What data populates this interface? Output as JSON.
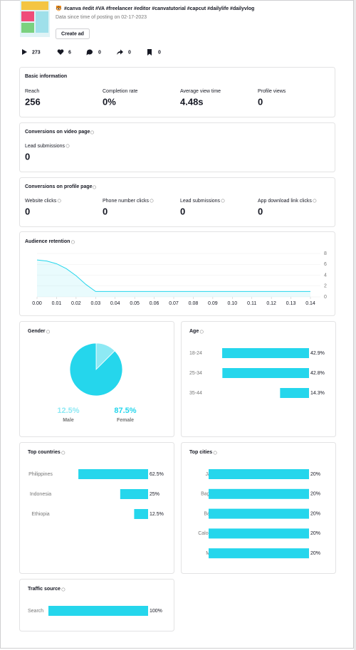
{
  "video": {
    "hashtags": "#canva #edit #VA #freelancer #editor #canvatutorial #capcut #dailylife #dailyvlog",
    "date_note": "Data since time of posting on 02-17-2023",
    "create_ad": "Create ad"
  },
  "stats": [
    273,
    6,
    0,
    0,
    0
  ],
  "basic_information": {
    "title": "Basic information",
    "metrics": [
      {
        "label": "Reach",
        "value": "256"
      },
      {
        "label": "Completion rate",
        "value": "0%"
      },
      {
        "label": "Average view time",
        "value": "4.48s"
      },
      {
        "label": "Profile views",
        "value": "0"
      }
    ]
  },
  "conversions_video": {
    "title": "Conversions on video page",
    "metrics": [
      {
        "label": "Lead submissions",
        "value": "0"
      }
    ]
  },
  "conversions_profile": {
    "title": "Conversions on profile page",
    "metrics": [
      {
        "label": "Website clicks",
        "value": "0"
      },
      {
        "label": "Phone number clicks",
        "value": "0"
      },
      {
        "label": "Lead submissions",
        "value": "0"
      },
      {
        "label": "App download link clicks",
        "value": "0"
      }
    ]
  },
  "audience_retention": {
    "title": "Audience retention",
    "chart": {
      "type": "line",
      "color": "#25d6ec",
      "x": [
        0,
        0.005,
        0.01,
        0.015,
        0.02,
        0.025,
        0.03,
        0.14
      ],
      "values": [
        6.8,
        6.6,
        6.1,
        5.2,
        3.9,
        2.3,
        1,
        1
      ],
      "xlim": [
        0,
        0.14
      ],
      "ylim": [
        0,
        8
      ],
      "xticks": [
        {
          "value": 0,
          "label": "0.00"
        },
        0.01,
        0.02,
        0.03,
        0.04,
        0.05,
        0.06,
        0.07,
        0.08,
        0.09,
        {
          "value": 0.1,
          "label": "0.10"
        },
        0.11,
        0.12,
        0.13,
        0.14
      ],
      "yticks": [
        0,
        2,
        4,
        6,
        8
      ]
    }
  },
  "gender": {
    "title": "Gender",
    "chart": {
      "type": "pie",
      "categories": [
        "Male",
        "Female"
      ],
      "values": [
        12.5,
        87.5
      ],
      "value_labels": [
        "12.5%",
        "87.5%"
      ],
      "colors": [
        "#8ee9f4",
        "#25d6ec"
      ]
    }
  },
  "age": {
    "title": "Age",
    "chart": {
      "type": "bar",
      "categories": [
        "18-24",
        "25-34",
        "35-44"
      ],
      "values": [
        42.9,
        42.8,
        14.3
      ],
      "value_labels": [
        "42.9%",
        "42.8%",
        "14.3%"
      ],
      "color": "#25d6ec",
      "xlim": [
        0,
        49.6
      ]
    }
  },
  "top_countries": {
    "title": "Top countries",
    "chart": {
      "type": "bar",
      "categories": [
        "Philippines",
        "Indonesia",
        "Ethiopia"
      ],
      "values": [
        62.5,
        25,
        12.5
      ],
      "value_labels": [
        "62.5%",
        "25%",
        "12.5%"
      ],
      "color": "#25d6ec",
      "xlim": [
        0,
        90
      ]
    }
  },
  "top_cities": {
    "title": "Top cities",
    "chart": {
      "type": "bar",
      "categories": [
        "Jakarta",
        "Baguio City",
        "Bagacay",
        "Caloocan City",
        "Medan"
      ],
      "values": [
        20,
        20,
        20,
        20,
        20
      ],
      "value_labels": [
        "20%",
        "20%",
        "20%",
        "20%",
        "20%"
      ],
      "color": "#25d6ec",
      "xlim": [
        0,
        20
      ]
    }
  },
  "traffic_source": {
    "title": "Traffic source",
    "chart": {
      "type": "bar",
      "categories": [
        "Search"
      ],
      "values": [
        100
      ],
      "value_labels": [
        "100%"
      ],
      "color": "#25d6ec",
      "xlim": [
        0,
        100
      ]
    }
  }
}
